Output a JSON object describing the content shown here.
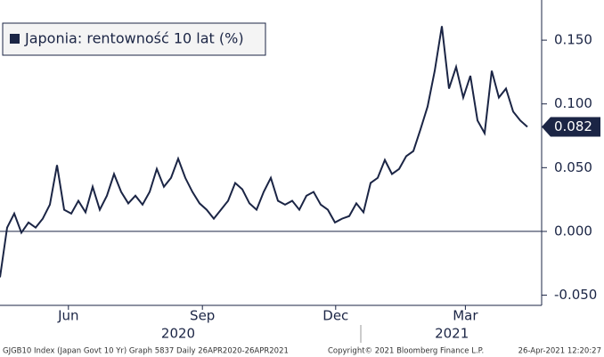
{
  "chart_data": {
    "type": "line",
    "legend_label": "Japonia: rentowność 10 lat (%)",
    "x": [
      0,
      1,
      2,
      3,
      4,
      5,
      6,
      7,
      8,
      9,
      10,
      11,
      12,
      13,
      14,
      15,
      16,
      17,
      18,
      19,
      20,
      21,
      22,
      23,
      24,
      25,
      26,
      27,
      28,
      29,
      30,
      31,
      32,
      33,
      34,
      35,
      36,
      37,
      38,
      39,
      40,
      41,
      42,
      43,
      44,
      45,
      46,
      47,
      48,
      49,
      50,
      51,
      52,
      53,
      54,
      55,
      56,
      57,
      58,
      59,
      60,
      61,
      62,
      63,
      64,
      65,
      66,
      67,
      68,
      69,
      70,
      71,
      72,
      73,
      74
    ],
    "series": [
      {
        "name": "Japonia: rentowność 10 lat (%)",
        "color": "#1b2545",
        "values": [
          -0.036,
          0.003,
          0.014,
          -0.001,
          0.007,
          0.003,
          0.01,
          0.021,
          0.052,
          0.017,
          0.014,
          0.024,
          0.015,
          0.035,
          0.017,
          0.028,
          0.045,
          0.031,
          0.022,
          0.028,
          0.021,
          0.031,
          0.049,
          0.035,
          0.042,
          0.057,
          0.042,
          0.031,
          0.022,
          0.017,
          0.01,
          0.017,
          0.024,
          0.038,
          0.033,
          0.022,
          0.017,
          0.031,
          0.042,
          0.024,
          0.021,
          0.024,
          0.017,
          0.028,
          0.031,
          0.021,
          0.017,
          0.007,
          0.01,
          0.012,
          0.022,
          0.015,
          0.038,
          0.042,
          0.056,
          0.045,
          0.049,
          0.059,
          0.063,
          0.08,
          0.098,
          0.126,
          0.161,
          0.112,
          0.129,
          0.105,
          0.122,
          0.087,
          0.077,
          0.126,
          0.105,
          0.112,
          0.094,
          0.087,
          0.082
        ]
      }
    ],
    "xlim": [
      0,
      76
    ],
    "xticks": [
      {
        "value": 9.6,
        "label": "Jun"
      },
      {
        "value": 28.4,
        "label": "Sep"
      },
      {
        "value": 47.1,
        "label": "Dec"
      },
      {
        "value": 65.3,
        "label": "Mar"
      }
    ],
    "x_group_labels": [
      {
        "value": 25,
        "label": "2020"
      },
      {
        "value": 63.4,
        "label": "2021"
      }
    ],
    "ylim": [
      -0.058,
      0.1815
    ],
    "yticks": [
      {
        "value": 0.15,
        "label": "0.150"
      },
      {
        "value": 0.1,
        "label": "0.100"
      },
      {
        "value": 0.05,
        "label": "0.050"
      },
      {
        "value": 0,
        "label": "0.000"
      },
      {
        "value": -0.05,
        "label": "-0.050"
      }
    ],
    "hlines": [
      0
    ]
  },
  "footer": [
    "GJGB10 Index (Japan Govt 10 Yr) Graph 5837  Daily 26APR2020-26APR2021",
    "Copyright© 2021 Bloomberg Finance L.P.",
    "26-Apr-2021 12:20:27"
  ]
}
